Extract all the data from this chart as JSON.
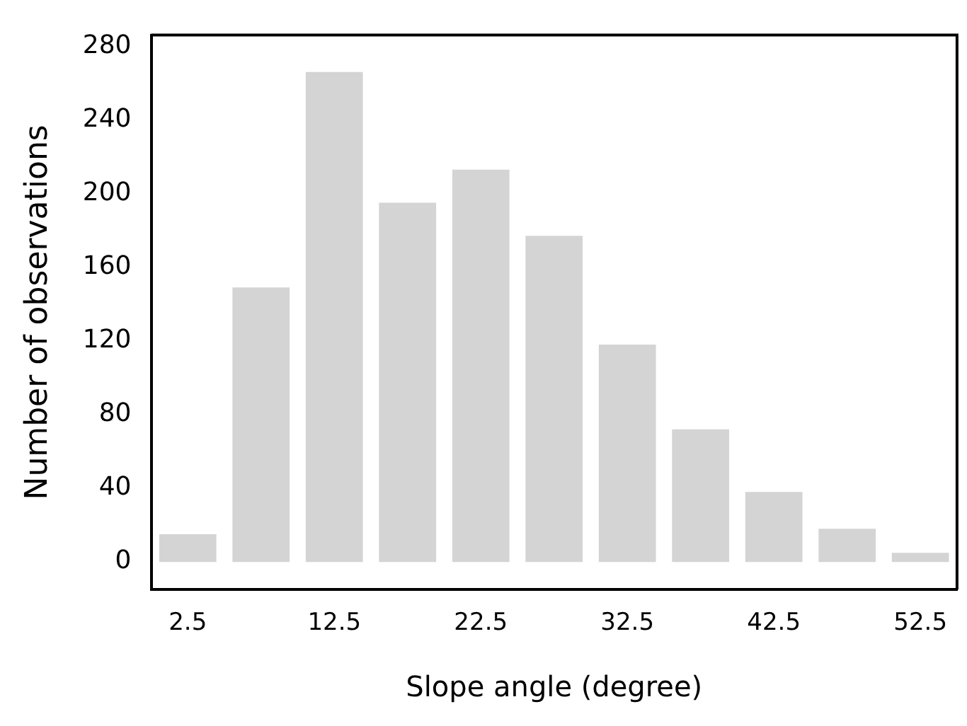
{
  "chart_data": {
    "type": "bar",
    "xlabel": "Slope angle (degree)",
    "ylabel": "Number of observations",
    "categories": [
      "2.5",
      null,
      "12.5",
      null,
      "22.5",
      null,
      "32.5",
      null,
      "42.5",
      null,
      "52.5"
    ],
    "values": [
      15,
      149,
      266,
      195,
      213,
      177,
      118,
      72,
      38,
      18,
      5
    ],
    "color": "#d4d4d4",
    "ylim": [
      -15,
      286
    ],
    "yticks": [
      0,
      40,
      80,
      120,
      160,
      200,
      240,
      280
    ],
    "grid": false,
    "legend": false
  }
}
